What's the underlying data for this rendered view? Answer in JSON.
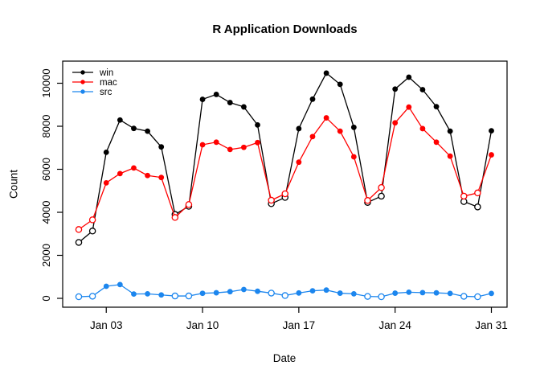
{
  "chart_data": {
    "type": "line",
    "title": "R Application Downloads",
    "xlabel": "Date",
    "ylabel": "Count",
    "month": "Jan",
    "x_days": [
      1,
      2,
      3,
      4,
      5,
      6,
      7,
      8,
      9,
      10,
      11,
      12,
      13,
      14,
      15,
      16,
      17,
      18,
      19,
      20,
      21,
      22,
      23,
      24,
      25,
      26,
      27,
      28,
      29,
      30,
      31
    ],
    "series": [
      {
        "name": "win",
        "color": "#000000",
        "values": [
          2600,
          3130,
          6790,
          8290,
          7900,
          7770,
          7040,
          3900,
          4280,
          9250,
          9480,
          9100,
          8900,
          8060,
          4400,
          4690,
          7890,
          9260,
          10470,
          9950,
          7950,
          4460,
          4750,
          9730,
          10280,
          9700,
          8910,
          7770,
          4500,
          4250,
          7790
        ]
      },
      {
        "name": "mac",
        "color": "#FF0000",
        "values": [
          3200,
          3650,
          5370,
          5800,
          6060,
          5710,
          5620,
          3760,
          4360,
          7140,
          7260,
          6920,
          7020,
          7240,
          4560,
          4860,
          6330,
          7520,
          8390,
          7770,
          6580,
          4550,
          5150,
          8160,
          8890,
          7890,
          7260,
          6610,
          4750,
          4900,
          6670
        ]
      },
      {
        "name": "src",
        "color": "#1C86EE",
        "values": [
          75,
          100,
          560,
          640,
          200,
          210,
          160,
          110,
          110,
          235,
          260,
          310,
          410,
          330,
          245,
          130,
          250,
          350,
          385,
          240,
          210,
          90,
          75,
          240,
          285,
          265,
          255,
          230,
          95,
          75,
          230
        ]
      }
    ],
    "marker_open_days": [
      1,
      2,
      8,
      9,
      15,
      16,
      22,
      23,
      29,
      30
    ],
    "legend": {
      "position": "top-left",
      "entries": [
        "win",
        "mac",
        "src"
      ]
    },
    "x_axis": {
      "ticks": [
        {
          "day": 3,
          "label": "Jan 03"
        },
        {
          "day": 10,
          "label": "Jan 10"
        },
        {
          "day": 17,
          "label": "Jan 17"
        },
        {
          "day": 24,
          "label": "Jan 24"
        },
        {
          "day": 31,
          "label": "Jan 31"
        }
      ]
    },
    "y_axis": {
      "ticks": [
        0,
        2000,
        4000,
        6000,
        8000,
        10000
      ],
      "range_shown": [
        0,
        11000
      ]
    },
    "grid": "off"
  }
}
